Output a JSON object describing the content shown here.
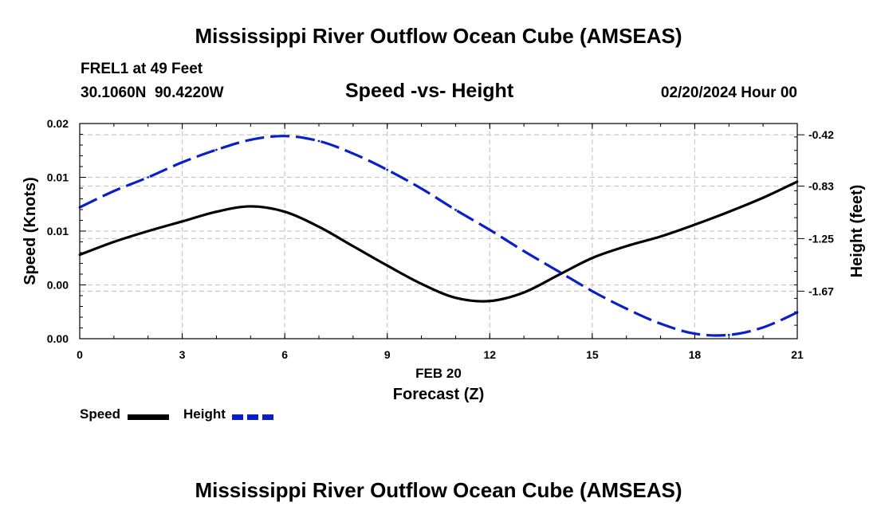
{
  "page": {
    "title": "Mississippi River Outflow Ocean Cube (AMSEAS)",
    "title_repeat": "Mississippi River Outflow Ocean Cube (AMSEAS)",
    "station": "FREL1 at 49 Feet",
    "coords": "30.1060N  90.4220W",
    "subtitle": "Speed -vs- Height",
    "datetime": "02/20/2024 Hour 00"
  },
  "colors": {
    "speed": "#000000",
    "height": "#0a1fc8",
    "grid": "#c8c8c8"
  },
  "chart_data": {
    "type": "line",
    "title": "Speed -vs- Height",
    "xlabel": "Forecast (Z)",
    "xlabel_date": "FEB 20",
    "ylabel_left": "Speed (Knots)",
    "ylabel_right": "Height (feet)",
    "xlim": [
      0,
      21
    ],
    "x_ticks": [
      0,
      3,
      6,
      9,
      12,
      15,
      18,
      21
    ],
    "y_left_lim": [
      0,
      0.02
    ],
    "y_left_tick_values": [
      0,
      0.005,
      0.01,
      0.015,
      0.02
    ],
    "y_left_tick_labels": [
      "0.00",
      "0.00",
      "0.01",
      "0.01",
      "0.02"
    ],
    "y_right_lim": [
      -2.05,
      -0.33
    ],
    "y_right_ticks": [
      -0.42,
      -0.83,
      -1.25,
      -1.67
    ],
    "y_right_tick_labels": [
      "-0.42",
      "-0.83",
      "-1.25",
      "-1.67"
    ],
    "grid": true,
    "legend_position": "bottom-left",
    "series": [
      {
        "name": "Speed",
        "axis": "left",
        "style": "solid",
        "x": [
          0,
          1,
          2,
          3,
          4,
          5,
          6,
          7,
          8,
          9,
          10,
          11,
          12,
          13,
          14,
          15,
          16,
          17,
          18,
          19,
          20,
          21
        ],
        "values": [
          0.0078,
          0.009,
          0.01,
          0.0109,
          0.0118,
          0.0123,
          0.0118,
          0.0104,
          0.0086,
          0.0068,
          0.0051,
          0.0038,
          0.0035,
          0.0043,
          0.0059,
          0.0075,
          0.0086,
          0.0095,
          0.0106,
          0.0118,
          0.0131,
          0.0146
        ]
      },
      {
        "name": "Height",
        "axis": "right",
        "style": "dashed",
        "x": [
          0,
          1,
          2,
          3,
          4,
          5,
          6,
          7,
          8,
          9,
          10,
          11,
          12,
          13,
          14,
          15,
          16,
          17,
          18,
          19,
          20,
          21
        ],
        "values": [
          -1.0,
          -0.87,
          -0.76,
          -0.64,
          -0.54,
          -0.46,
          -0.43,
          -0.47,
          -0.57,
          -0.7,
          -0.85,
          -1.02,
          -1.18,
          -1.35,
          -1.51,
          -1.67,
          -1.81,
          -1.93,
          -2.01,
          -2.02,
          -1.96,
          -1.84
        ]
      }
    ]
  },
  "legend": {
    "speed_label": "Speed",
    "height_label": "Height"
  }
}
